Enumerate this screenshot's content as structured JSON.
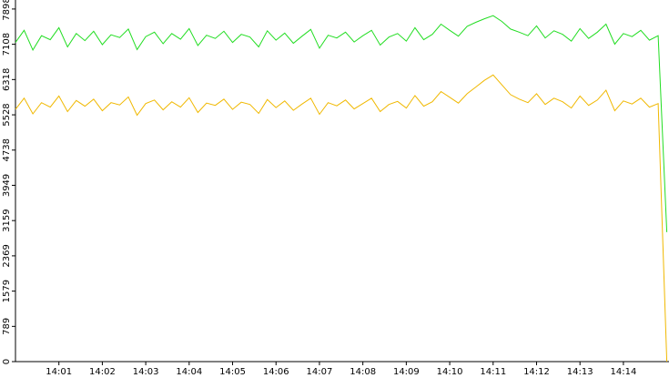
{
  "chart_data": {
    "type": "line",
    "x": [
      0,
      0.2,
      0.4,
      0.6,
      0.8,
      1,
      1.2,
      1.4,
      1.6,
      1.8,
      2,
      2.2,
      2.4,
      2.6,
      2.8,
      3,
      3.2,
      3.4,
      3.6,
      3.8,
      4,
      4.2,
      4.4,
      4.6,
      4.8,
      5,
      5.2,
      5.4,
      5.6,
      5.8,
      6,
      6.2,
      6.4,
      6.6,
      6.8,
      7,
      7.2,
      7.4,
      7.6,
      7.8,
      8,
      8.2,
      8.4,
      8.6,
      8.8,
      9,
      9.2,
      9.4,
      9.6,
      9.8,
      10,
      10.2,
      10.4,
      10.6,
      10.8,
      11,
      11.2,
      11.4,
      11.6,
      11.8,
      12,
      12.2,
      12.4,
      12.6,
      12.8,
      13,
      13.2,
      13.4,
      13.6,
      13.8,
      14,
      14.2,
      14.4,
      14.6,
      14.8,
      15
    ],
    "series": [
      {
        "color": "#22dd22",
        "values": [
          7150,
          7420,
          6980,
          7300,
          7210,
          7480,
          7050,
          7350,
          7190,
          7400,
          7100,
          7320,
          7260,
          7450,
          6990,
          7280,
          7380,
          7120,
          7350,
          7220,
          7460,
          7080,
          7310,
          7240,
          7400,
          7150,
          7330,
          7270,
          7050,
          7410,
          7200,
          7360,
          7130,
          7290,
          7440,
          7020,
          7310,
          7250,
          7380,
          7160,
          7300,
          7420,
          7090,
          7270,
          7350,
          7180,
          7480,
          7210,
          7330,
          7560,
          7420,
          7290,
          7510,
          7600,
          7680,
          7750,
          7620,
          7450,
          7380,
          7300,
          7520,
          7250,
          7410,
          7330,
          7180,
          7460,
          7240,
          7380,
          7560,
          7110,
          7350,
          7280,
          7420,
          7200,
          7300,
          2900
        ]
      },
      {
        "color": "#f0b800",
        "values": [
          5650,
          5900,
          5550,
          5800,
          5700,
          5950,
          5600,
          5850,
          5720,
          5880,
          5620,
          5800,
          5750,
          5930,
          5520,
          5780,
          5860,
          5640,
          5820,
          5700,
          5910,
          5580,
          5790,
          5740,
          5880,
          5650,
          5810,
          5760,
          5560,
          5870,
          5690,
          5840,
          5630,
          5770,
          5900,
          5540,
          5800,
          5730,
          5860,
          5660,
          5780,
          5900,
          5600,
          5760,
          5830,
          5680,
          5960,
          5720,
          5820,
          6050,
          5920,
          5790,
          6000,
          6150,
          6300,
          6420,
          6200,
          5980,
          5880,
          5800,
          6000,
          5760,
          5900,
          5820,
          5680,
          5950,
          5740,
          5860,
          6080,
          5620,
          5840,
          5770,
          5900,
          5700,
          5780,
          0
        ]
      }
    ],
    "xlim": [
      0,
      15.05
    ],
    "xticks": [
      {
        "value": 1,
        "label": "14:01"
      },
      {
        "value": 2,
        "label": "14:02"
      },
      {
        "value": 3,
        "label": "14:03"
      },
      {
        "value": 4,
        "label": "14:04"
      },
      {
        "value": 5,
        "label": "14:05"
      },
      {
        "value": 6,
        "label": "14:06"
      },
      {
        "value": 7,
        "label": "14:07"
      },
      {
        "value": 8,
        "label": "14:08"
      },
      {
        "value": 9,
        "label": "14:09"
      },
      {
        "value": 10,
        "label": "14:10"
      },
      {
        "value": 11,
        "label": "14:11"
      },
      {
        "value": 12,
        "label": "14:12"
      },
      {
        "value": 13,
        "label": "14:13"
      },
      {
        "value": 14,
        "label": "14:14"
      }
    ],
    "ylim": [
      0,
      8100
    ],
    "yticks": [
      0,
      789,
      1579,
      2369,
      3159,
      3949,
      4738,
      5528,
      6318,
      7108,
      7898
    ]
  }
}
